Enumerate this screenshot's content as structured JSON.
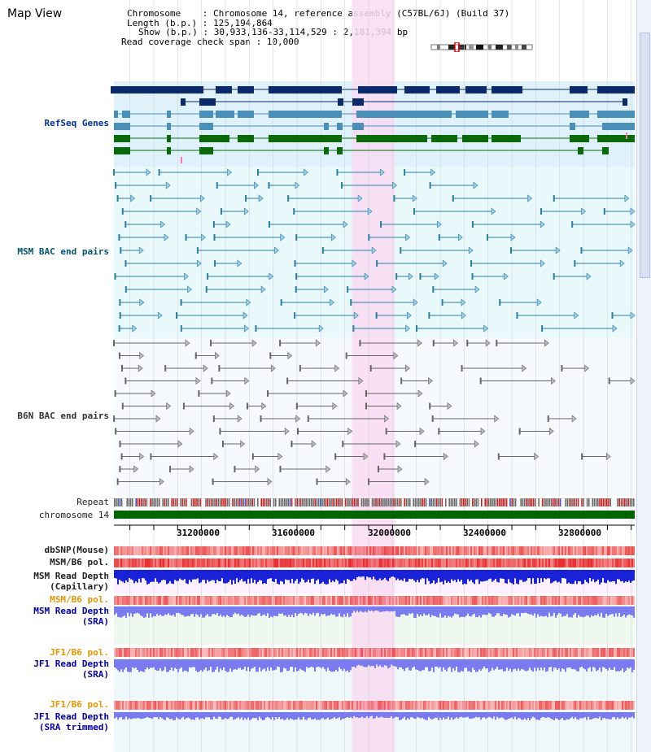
{
  "window": {
    "title": "Map View"
  },
  "header": {
    "chromosome_line": "Chromosome    : Chromosome 14, reference assembly (C57BL/6J) (Build 37)",
    "length_line": "Length (b.p.) : 125,194,864",
    "show_line": "Show (b.p.) : 30,933,136-33,114,529 : 2,181,394 bp",
    "coverage_line": "Read coverage check span : 10,000"
  },
  "view": {
    "start_bp": 30933136,
    "end_bp": 33114529,
    "highlight_start_bp": 31930000,
    "highlight_end_bp": 32110000
  },
  "tracks": {
    "refseq": "RefSeq Genes",
    "msm_bac": "MSM BAC end pairs",
    "b6n_bac": "B6N BAC end pairs",
    "repeat": "Repeat",
    "chromosome": "chromosome 14",
    "dbsnp": "dbSNP(Mouse)",
    "msm_pol": "MSM/B6 pol.",
    "msm_depth_cap_1": "MSM Read Depth",
    "msm_depth_cap_2": "(Capillary)",
    "msm_pol_2": "MSM/B6 pol.",
    "msm_depth_sra_1": "MSM Read Depth",
    "msm_depth_sra_2": "(SRA)",
    "jf1_pol": "JF1/B6 pol.",
    "jf1_depth_sra_1": "JF1 Read Depth",
    "jf1_depth_sra_2": "(SRA)",
    "jf1_pol_2": "JF1/B6 pol.",
    "jf1_depth_trim_1": "JF1 Read Depth",
    "jf1_depth_trim_2": "(SRA trimmed)"
  },
  "scale_ticks": [
    "31200000",
    "31600000",
    "32000000",
    "32400000",
    "32800000"
  ],
  "colors": {
    "refseq_bg": "#dff1fa",
    "msm_bg": "#e9f8fb",
    "b6n_bg": "#f6f9fd",
    "highlight": "#f9dcf2",
    "gene_dark": "#0b2a6b",
    "gene_mid": "#4a8fb8",
    "gene_green": "#0a6a0a",
    "msm_line": "#2a7fa5",
    "b6n_line": "#666666",
    "chrom_bar": "#006400",
    "pol_red": "#e83030",
    "depth_blue": "#1a22d8",
    "depth_light": "#7b7bf0"
  }
}
